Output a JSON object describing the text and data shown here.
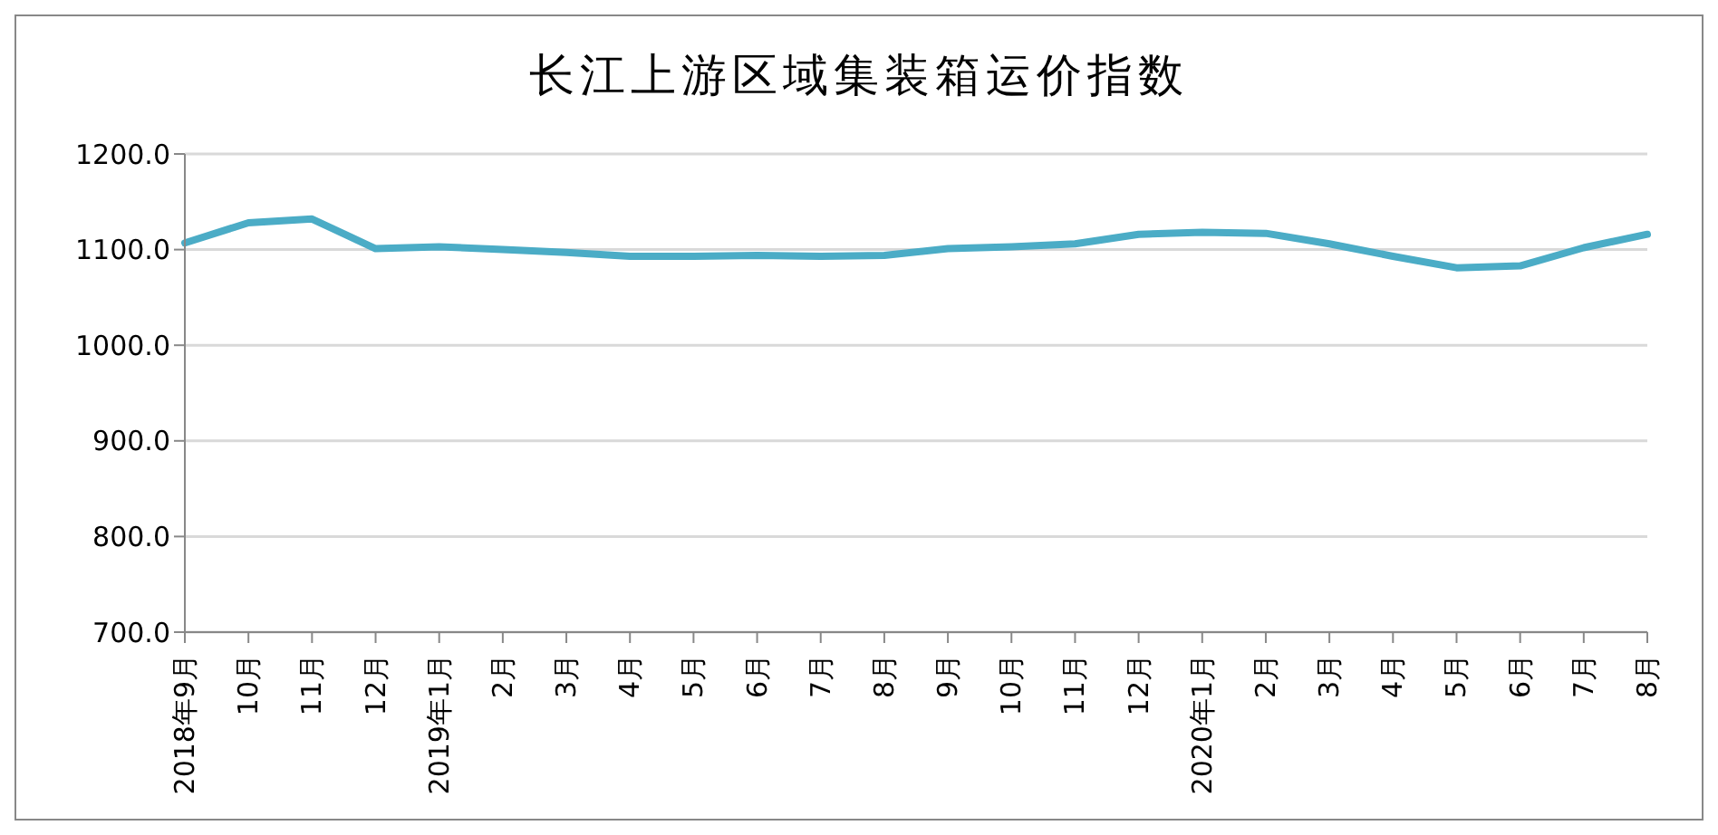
{
  "chart_data": {
    "type": "line",
    "title": "长江上游区域集装箱运价指数",
    "categories": [
      "2018年9月",
      "10月",
      "11月",
      "12月",
      "2019年1月",
      "2月",
      "3月",
      "4月",
      "5月",
      "6月",
      "7月",
      "8月",
      "9月",
      "10月",
      "11月",
      "12月",
      "2020年1月",
      "2月",
      "3月",
      "4月",
      "5月",
      "6月",
      "7月",
      "8月"
    ],
    "series": [
      {
        "color": "#4bacc6",
        "values": [
          1107,
          1128,
          1132,
          1101,
          1103,
          1100,
          1097,
          1093,
          1093,
          1094,
          1093,
          1094,
          1101,
          1103,
          1106,
          1116,
          1118,
          1117,
          1106,
          1093,
          1081,
          1083,
          1102,
          1116
        ]
      }
    ],
    "ylim": [
      700,
      1200
    ],
    "yticks": [
      {
        "value": 700,
        "label": "700.0"
      },
      {
        "value": 800,
        "label": "800.0"
      },
      {
        "value": 900,
        "label": "900.0"
      },
      {
        "value": 1000,
        "label": "1000.0"
      },
      {
        "value": 1100,
        "label": "1100.0"
      },
      {
        "value": 1200,
        "label": "1200.0"
      }
    ],
    "grid": "y",
    "legend": false,
    "marker": "none",
    "line_style": "solid"
  }
}
